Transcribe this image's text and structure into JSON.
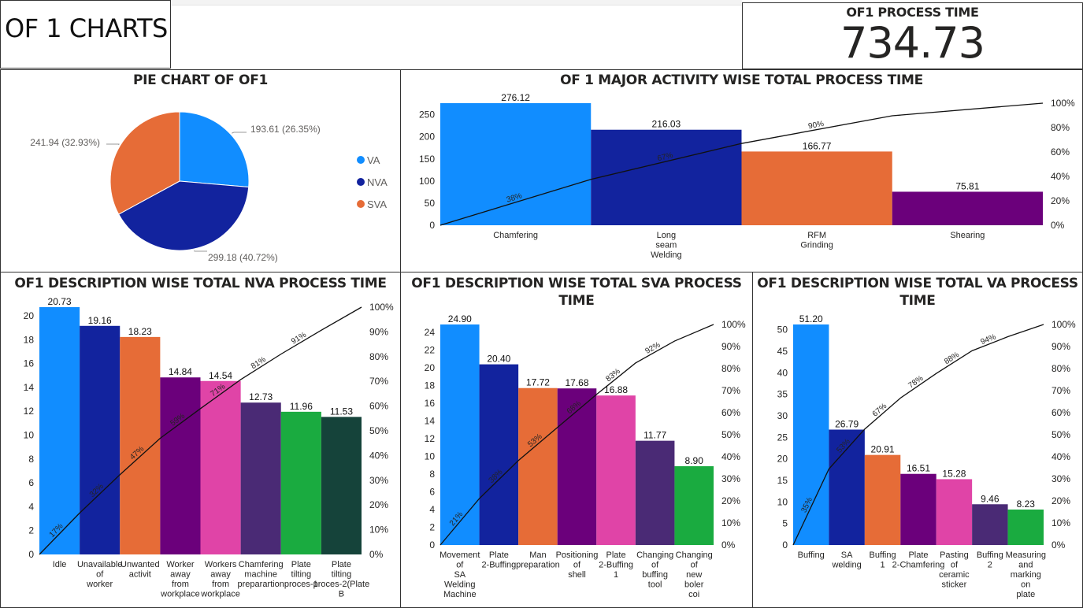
{
  "header": {
    "title": "OF 1 CHARTS",
    "kpi_label": "OF1 PROCESS TIME",
    "kpi_value": "734.73"
  },
  "colors": {
    "blue": "#118DFF",
    "navy": "#12239E",
    "orange": "#E66C37",
    "purple": "#6B007B",
    "pink": "#E044A7",
    "violet": "#4A2A75",
    "green": "#1AAB40",
    "darkgreen": "#15433A"
  },
  "pie": {
    "title": "PIE CHART OF OF1",
    "slices": [
      {
        "name": "VA",
        "value": 193.61,
        "label": "193.61 (26.35%)",
        "color": "#118DFF"
      },
      {
        "name": "NVA",
        "value": 299.18,
        "label": "299.18 (40.72%)",
        "color": "#12239E"
      },
      {
        "name": "SVA",
        "value": 241.94,
        "label": "241.94 (32.93%)",
        "color": "#E66C37"
      }
    ],
    "legend": [
      "VA",
      "NVA",
      "SVA"
    ]
  },
  "chart_data": [
    {
      "id": "major",
      "type": "bar",
      "title": "OF 1 MAJOR ACTIVITY WISE TOTAL PROCESS TIME",
      "categories": [
        [
          "Chamfering"
        ],
        [
          "Long",
          "seam",
          "Welding"
        ],
        [
          "RFM",
          "Grinding"
        ],
        [
          "Shearing"
        ]
      ],
      "values": [
        276.12,
        216.03,
        166.77,
        75.81
      ],
      "value_labels": [
        "276.12",
        "216.03",
        "166.77",
        "75.81"
      ],
      "colors": [
        "#118DFF",
        "#12239E",
        "#E66C37",
        "#6B007B"
      ],
      "ylim": [
        0,
        276.12
      ],
      "yticks": [
        0,
        50,
        100,
        150,
        200,
        250
      ],
      "line": {
        "type": "cumulative_percent",
        "point_labels": [
          "38%",
          "67%",
          "90%"
        ]
      },
      "y2ticks": [
        "0%",
        "20%",
        "40%",
        "60%",
        "80%",
        "100%"
      ]
    },
    {
      "id": "nva",
      "type": "bar",
      "title": "OF1 DESCRIPTION WISE TOTAL NVA PROCESS TIME",
      "categories": [
        [
          "Idle"
        ],
        [
          "Unavailable",
          "of",
          "worker"
        ],
        [
          "Unwanted",
          "activit"
        ],
        [
          "Worker",
          "away",
          "from",
          "workplace"
        ],
        [
          "Workers",
          "away",
          "from",
          "workplace"
        ],
        [
          "Chamfering",
          "machine",
          "preparartion"
        ],
        [
          "Plate",
          "tilting",
          "proces-1"
        ],
        [
          "Plate",
          "tilting",
          "proces-2(Plate",
          "B"
        ]
      ],
      "values": [
        20.73,
        19.16,
        18.23,
        14.84,
        14.54,
        12.73,
        11.96,
        11.53
      ],
      "value_labels": [
        "20.73",
        "19.16",
        "18.23",
        "14.84",
        "14.54",
        "12.73",
        "11.96",
        "11.53"
      ],
      "colors": [
        "#118DFF",
        "#12239E",
        "#E66C37",
        "#6B007B",
        "#E044A7",
        "#4A2A75",
        "#1AAB40",
        "#15433A"
      ],
      "ylim": [
        0,
        20.73
      ],
      "yticks": [
        0,
        2,
        4,
        6,
        8,
        10,
        12,
        14,
        16,
        18,
        20
      ],
      "line": {
        "type": "cumulative_percent",
        "point_labels": [
          "17%",
          "32%",
          "47%",
          "59%",
          "71%",
          "81%",
          "91%"
        ]
      },
      "y2ticks": [
        "0%",
        "10%",
        "20%",
        "30%",
        "40%",
        "50%",
        "60%",
        "70%",
        "80%",
        "90%",
        "100%"
      ]
    },
    {
      "id": "sva",
      "type": "bar",
      "title": [
        "OF1 DESCRIPTION WISE TOTAL SVA PROCESS",
        "TIME"
      ],
      "categories": [
        [
          "Movement",
          "of",
          "SA",
          "Welding",
          "Machine"
        ],
        [
          "Plate",
          "2-Buffing"
        ],
        [
          "Man",
          "preparation"
        ],
        [
          "Positioning",
          "of",
          "shell"
        ],
        [
          "Plate",
          "2-Buffing",
          "1"
        ],
        [
          "Changing",
          "of",
          "buffing",
          "tool"
        ],
        [
          "Changing",
          "of",
          "new",
          "boler",
          "coi"
        ]
      ],
      "values": [
        24.9,
        20.4,
        17.72,
        17.68,
        16.88,
        11.77,
        8.9
      ],
      "value_labels": [
        "24.90",
        "20.40",
        "17.72",
        "17.68",
        "16.88",
        "11.77",
        "8.90"
      ],
      "colors": [
        "#118DFF",
        "#12239E",
        "#E66C37",
        "#6B007B",
        "#E044A7",
        "#4A2A75",
        "#1AAB40"
      ],
      "ylim": [
        0,
        24.9
      ],
      "yticks": [
        0,
        2,
        4,
        6,
        8,
        10,
        12,
        14,
        16,
        18,
        20,
        22,
        24
      ],
      "line": {
        "type": "cumulative_percent",
        "point_labels": [
          "21%",
          "38%",
          "53%",
          "68%",
          "83%",
          "92%"
        ]
      },
      "y2ticks": [
        "0%",
        "10%",
        "20%",
        "30%",
        "40%",
        "50%",
        "60%",
        "70%",
        "80%",
        "90%",
        "100%"
      ]
    },
    {
      "id": "va",
      "type": "bar",
      "title": [
        "OF1 DESCRIPTION WISE TOTAL VA PROCESS",
        "TIME"
      ],
      "categories": [
        [
          "Buffing"
        ],
        [
          "SA",
          "welding"
        ],
        [
          "Buffing",
          "1"
        ],
        [
          "Plate",
          "2-Chamfering"
        ],
        [
          "Pasting",
          "of",
          "ceramic",
          "sticker"
        ],
        [
          "Buffing",
          "2"
        ],
        [
          "Measuring",
          "and",
          "marking",
          "on",
          "plate"
        ]
      ],
      "values": [
        51.2,
        26.79,
        20.91,
        16.51,
        15.28,
        9.46,
        8.23
      ],
      "value_labels": [
        "51.20",
        "26.79",
        "20.91",
        "16.51",
        "15.28",
        "9.46",
        "8.23"
      ],
      "colors": [
        "#118DFF",
        "#12239E",
        "#E66C37",
        "#6B007B",
        "#E044A7",
        "#4A2A75",
        "#1AAB40"
      ],
      "ylim": [
        0,
        51.2
      ],
      "yticks": [
        0,
        5,
        10,
        15,
        20,
        25,
        30,
        35,
        40,
        45,
        50
      ],
      "line": {
        "type": "cumulative_percent",
        "point_labels": [
          "35%",
          "53%",
          "67%",
          "78%",
          "88%",
          "94%"
        ]
      },
      "y2ticks": [
        "0%",
        "10%",
        "20%",
        "30%",
        "40%",
        "50%",
        "60%",
        "70%",
        "80%",
        "90%",
        "100%"
      ]
    }
  ]
}
